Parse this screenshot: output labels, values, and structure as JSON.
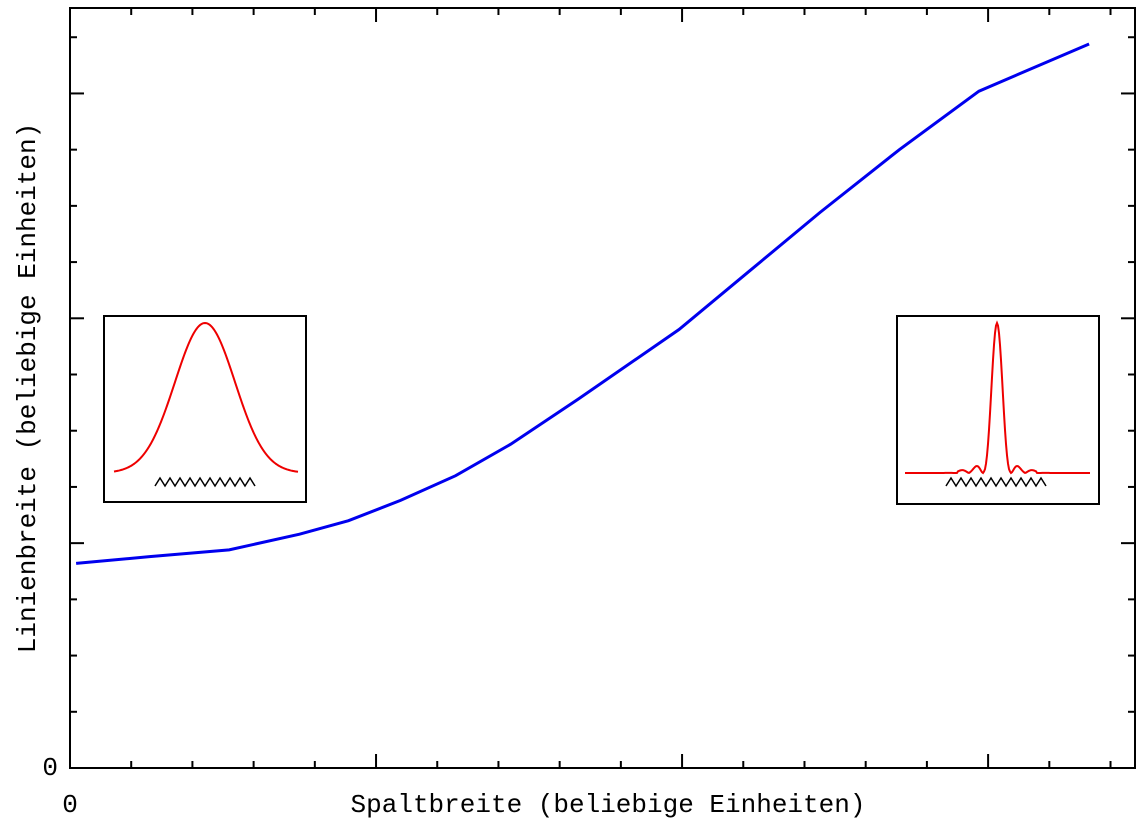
{
  "chart_data": {
    "type": "line",
    "x_label": "Spaltbreite (beliebige Einheiten)",
    "y_label": "Linienbreite (beliebige Einheiten)",
    "xlim": [
      0,
      3.48
    ],
    "ylim": [
      0,
      3.38
    ],
    "xticks": [
      0
    ],
    "yticks": [
      0
    ],
    "xticks_unlabeled": [
      1,
      2,
      3
    ],
    "yticks_unlabeled": [
      1,
      2,
      3
    ],
    "xticks_minor": [
      0.2,
      0.4,
      0.6,
      0.8,
      1.2,
      1.4,
      1.6,
      1.8,
      2.2,
      2.4,
      2.6,
      2.8,
      3.2,
      3.4
    ],
    "yticks_minor": [
      0.25,
      0.5,
      0.75,
      1.25,
      1.5,
      1.75,
      2.25,
      2.5,
      2.75,
      3.25
    ],
    "x": [
      0.02,
      0.26,
      0.52,
      0.75,
      0.91,
      1.08,
      1.26,
      1.44,
      1.66,
      1.99,
      2.22,
      2.45,
      2.71,
      2.97,
      3.33
    ],
    "series": [
      {
        "color": "#0000ee",
        "values": [
          0.91,
          0.94,
          0.97,
          1.04,
          1.1,
          1.19,
          1.3,
          1.44,
          1.64,
          1.95,
          2.21,
          2.47,
          2.75,
          3.01,
          3.22
        ]
      }
    ]
  }
}
